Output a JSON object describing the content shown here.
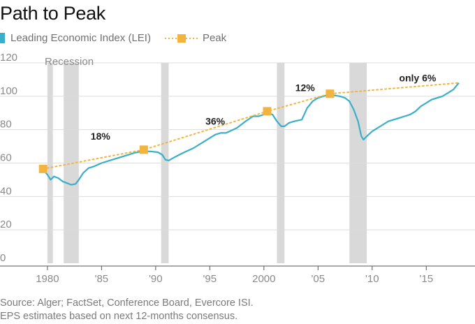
{
  "colors": {
    "lei": "#3aafc9",
    "peak": "#f3b43d",
    "recession": "#d9d9d9",
    "grid": "#dcdcdc",
    "axis_text": "#8a8a8a"
  },
  "footer": {
    "line1": "Source: Alger; FactSet, Conference Board, Evercore ISI.",
    "line2": "EPS estimates based on next 12-months consensus."
  },
  "chart_data": {
    "type": "line",
    "title": "Path to Peak",
    "legend": [
      {
        "name": "Leading Economic Index (LEI)",
        "marker": "swatch"
      },
      {
        "name": "Peak",
        "marker": "square-dotted-line"
      }
    ],
    "xlabel": "",
    "ylabel": "",
    "xlim": [
      1978.2,
      2019.5
    ],
    "ylim": [
      0,
      120
    ],
    "yticks": [
      0,
      20,
      40,
      60,
      80,
      100,
      120
    ],
    "xticks": [
      {
        "value": 1980,
        "label": "1980"
      },
      {
        "value": 1985,
        "label": "'85"
      },
      {
        "value": 1990,
        "label": "'90"
      },
      {
        "value": 1995,
        "label": "'95"
      },
      {
        "value": 2000,
        "label": "2000"
      },
      {
        "value": 2005,
        "label": "'05"
      },
      {
        "value": 2010,
        "label": "'10"
      },
      {
        "value": 2015,
        "label": "'15"
      }
    ],
    "recession_label": "Recession",
    "recessions": [
      [
        1980.0,
        1980.5
      ],
      [
        1981.5,
        1982.9
      ],
      [
        1990.5,
        1991.2
      ],
      [
        2001.2,
        2001.9
      ],
      [
        2007.9,
        2009.5
      ]
    ],
    "series": [
      {
        "name": "Leading Economic Index (LEI)",
        "x": [
          1979.6,
          1980.0,
          1980.3,
          1980.6,
          1981.0,
          1981.4,
          1981.8,
          1982.2,
          1982.6,
          1982.9,
          1983.3,
          1983.8,
          1984.3,
          1985.0,
          1986.0,
          1987.0,
          1988.0,
          1988.7,
          1989.5,
          1990.2,
          1990.6,
          1990.9,
          1991.2,
          1991.6,
          1992.5,
          1993.5,
          1994.5,
          1995.5,
          1996.0,
          1996.5,
          1997.5,
          1998.3,
          1999.0,
          1999.5,
          2000.0,
          2000.4,
          2000.8,
          2001.2,
          2001.6,
          2001.9,
          2002.3,
          2002.8,
          2003.5,
          2004.0,
          2004.5,
          2005.0,
          2005.5,
          2006.0,
          2006.5,
          2007.0,
          2007.5,
          2007.9,
          2008.3,
          2008.7,
          2009.0,
          2009.2,
          2009.5,
          2010.0,
          2010.5,
          2011.0,
          2011.5,
          2012.0,
          2012.5,
          2013.0,
          2013.5,
          2014.0,
          2014.5,
          2015.0,
          2015.5,
          2016.0,
          2016.5,
          2017.0,
          2017.5,
          2018.0
        ],
        "y": [
          56,
          53,
          50,
          52,
          51,
          49,
          48,
          47,
          47.5,
          50,
          54,
          57,
          58,
          60,
          62,
          64,
          66,
          67,
          67,
          66.5,
          65,
          62,
          61.5,
          63,
          66,
          69,
          73,
          77,
          78,
          78,
          81,
          85,
          88,
          88,
          89,
          90,
          89,
          85,
          82,
          82,
          84,
          85,
          86,
          93,
          97,
          99,
          100,
          101,
          100.5,
          100,
          99,
          97,
          92,
          85,
          76,
          74,
          76,
          79,
          81,
          83,
          85,
          86,
          87,
          88,
          89,
          91,
          94,
          96,
          98,
          99,
          100,
          102,
          104,
          108
        ]
      },
      {
        "name": "Peak",
        "x": [
          1979.6,
          1988.9,
          2000.3,
          2006.1,
          2018.0
        ],
        "y": [
          56.5,
          68,
          91,
          101.5,
          108
        ],
        "markers": [
          true,
          true,
          true,
          true,
          false
        ]
      }
    ],
    "annotations": [
      {
        "text": "18%",
        "x": 1984.9,
        "y": 74
      },
      {
        "text": "36%",
        "x": 1995.5,
        "y": 83
      },
      {
        "text": "12%",
        "x": 2003.8,
        "y": 103
      },
      {
        "text": "only 6%",
        "x": 2014.2,
        "y": 109
      }
    ]
  }
}
